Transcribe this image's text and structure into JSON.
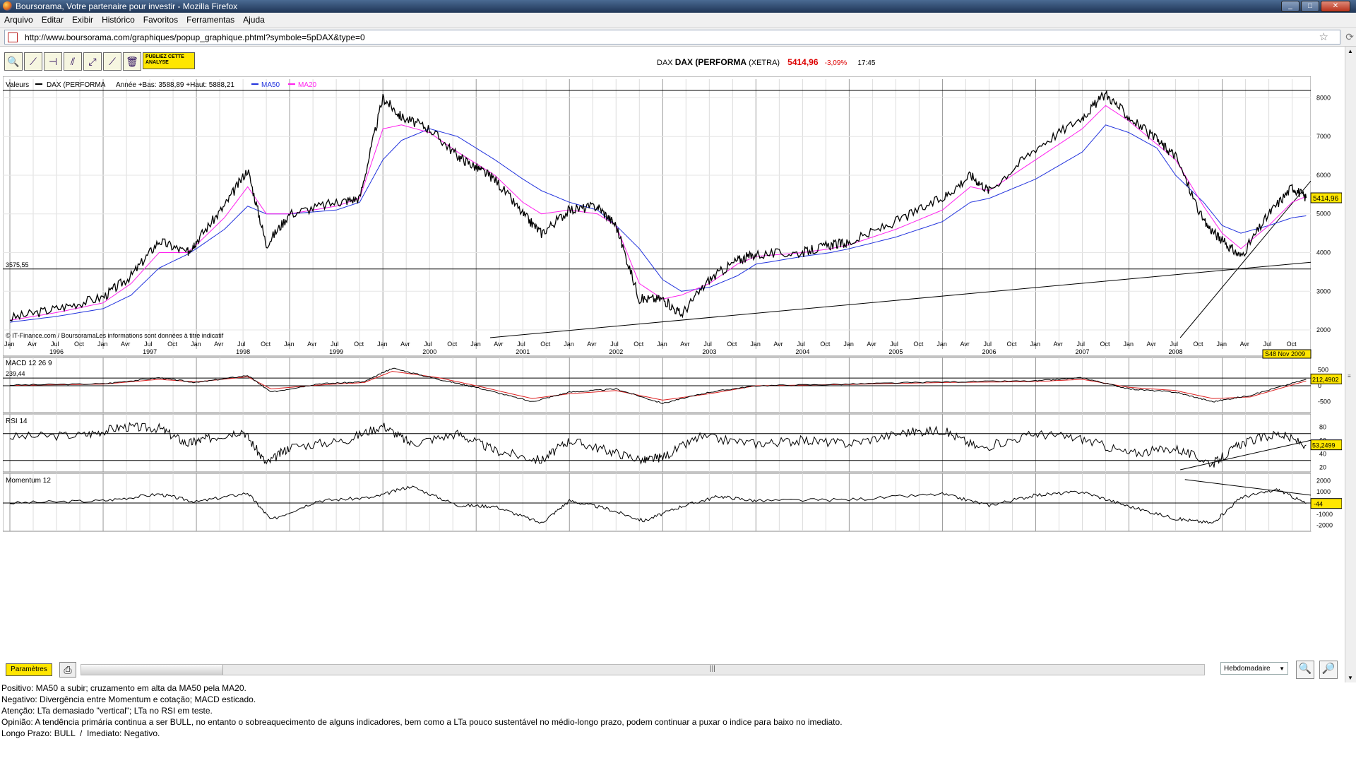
{
  "window": {
    "title": "Boursorama, Votre partenaire pour investir - Mozilla Firefox"
  },
  "menu": [
    "Arquivo",
    "Editar",
    "Exibir",
    "Histórico",
    "Favoritos",
    "Ferramentas",
    "Ajuda"
  ],
  "address": {
    "url": "http://www.boursorama.com/graphiques/popup_graphique.phtml?symbole=5pDAX&type=0"
  },
  "toolbar": {
    "publiez": "PUBLIEZ CETTE ANALYSE"
  },
  "quote": {
    "code": "DAX",
    "name": "DAX (PERFORMA",
    "market": "(XETRA)",
    "price": "5414,96",
    "change": "-3,09%",
    "time": "17:45"
  },
  "legend": {
    "valeurs": "Valeurs",
    "series": "DAX (PERFORMA",
    "stats": "Année +Bas: 3588,89 +Haut: 5888,21",
    "ma50": "MA50",
    "ma20": "MA20"
  },
  "copyright": "© IT-Finance.com / BoursoramaLes informations sont données à titre indicatif",
  "annotation": {
    "support_level": "3575,55",
    "last_price_tag": "5414,96",
    "date_tag": "S48 Nov 2009"
  },
  "colors": {
    "price": "#000000",
    "ma50": "#2233dd",
    "ma20": "#ff22ee",
    "signal": "#dd2222",
    "tag": "#ffe600"
  },
  "chart_data": [
    {
      "type": "line",
      "title": "DAX (PERFORMA",
      "years": [
        "1996",
        "1997",
        "1998",
        "1999",
        "2000",
        "2001",
        "2002",
        "2003",
        "2004",
        "2005",
        "2006",
        "2007",
        "2008"
      ],
      "month_ticks": [
        "Jan",
        "Avr",
        "Jul",
        "Oct"
      ],
      "y_ticks": [
        8000,
        7000,
        6000,
        5000,
        4000,
        3000,
        2000
      ],
      "ylim": [
        1800,
        8300
      ],
      "x": [
        1996.0,
        1996.5,
        1997.0,
        1997.3,
        1997.6,
        1997.9,
        1998.0,
        1998.3,
        1998.55,
        1998.75,
        1999.0,
        1999.5,
        1999.75,
        2000.0,
        2000.2,
        2000.5,
        2000.8,
        2001.0,
        2001.2,
        2001.5,
        2001.7,
        2002.0,
        2002.3,
        2002.5,
        2002.75,
        2003.0,
        2003.2,
        2003.5,
        2003.8,
        2004.0,
        2004.5,
        2004.8,
        2005.0,
        2005.5,
        2006.0,
        2006.3,
        2006.5,
        2007.0,
        2007.5,
        2007.75,
        2008.0,
        2008.3,
        2008.5,
        2008.8,
        2009.0,
        2009.2,
        2009.5,
        2009.75,
        2009.9
      ],
      "series": [
        {
          "name": "DAX (PERFORMA",
          "values": [
            2300,
            2550,
            2850,
            3400,
            4300,
            4000,
            4300,
            5200,
            6150,
            4200,
            5000,
            5300,
            5400,
            8000,
            7500,
            7200,
            6500,
            6200,
            5900,
            5000,
            4500,
            5100,
            5200,
            4700,
            2800,
            2800,
            2400,
            3300,
            3800,
            3950,
            4000,
            4200,
            4250,
            4800,
            5400,
            6000,
            5600,
            6700,
            7500,
            8100,
            7500,
            6900,
            6500,
            4800,
            4300,
            3900,
            5000,
            5700,
            5414
          ]
        },
        {
          "name": "MA50",
          "values": [
            2200,
            2350,
            2550,
            2900,
            3600,
            3950,
            4100,
            4600,
            5200,
            5000,
            5000,
            5100,
            5300,
            6400,
            6900,
            7200,
            7000,
            6700,
            6400,
            5900,
            5600,
            5300,
            5100,
            4700,
            4100,
            3300,
            3000,
            3100,
            3400,
            3700,
            3900,
            4000,
            4100,
            4400,
            4800,
            5300,
            5400,
            5900,
            6600,
            7300,
            7100,
            6700,
            6000,
            5300,
            4700,
            4500,
            4700,
            4900,
            4950
          ]
        },
        {
          "name": "MA20",
          "values": [
            2250,
            2450,
            2700,
            3200,
            4000,
            4000,
            4200,
            4900,
            5700,
            5000,
            5000,
            5200,
            5400,
            7200,
            7300,
            7100,
            6600,
            6300,
            6000,
            5300,
            5000,
            5100,
            5000,
            4700,
            3200,
            2800,
            2900,
            3200,
            3700,
            3900,
            4000,
            4100,
            4200,
            4600,
            5100,
            5700,
            5600,
            6400,
            7200,
            7800,
            7400,
            6800,
            6400,
            5200,
            4500,
            4100,
            4700,
            5300,
            5450
          ]
        }
      ]
    },
    {
      "type": "line",
      "title": "MACD 12 26 9",
      "y_ticks": [
        500,
        0,
        -500
      ],
      "labels": {
        "level": "239,44",
        "last": "212,4902"
      },
      "ylim": [
        -750,
        750
      ],
      "x": [
        1996.0,
        1997.0,
        1997.6,
        1998.0,
        1998.55,
        1998.8,
        1999.3,
        1999.8,
        2000.1,
        2000.6,
        2001.0,
        2001.6,
        2002.0,
        2002.5,
        2003.0,
        2003.5,
        2004.0,
        2005.0,
        2006.0,
        2007.0,
        2007.5,
        2008.0,
        2008.5,
        2008.9,
        2009.3,
        2009.9
      ],
      "series": [
        {
          "name": "MACD",
          "values": [
            20,
            60,
            250,
            100,
            320,
            -200,
            60,
            120,
            550,
            200,
            -50,
            -500,
            -200,
            -100,
            -550,
            -200,
            0,
            50,
            120,
            150,
            250,
            -100,
            -200,
            -500,
            -300,
            200
          ]
        },
        {
          "name": "Signal",
          "values": [
            10,
            50,
            200,
            120,
            280,
            -100,
            20,
            100,
            450,
            250,
            0,
            -400,
            -250,
            -150,
            -450,
            -250,
            0,
            40,
            100,
            130,
            200,
            -50,
            -150,
            -400,
            -350,
            150
          ]
        }
      ]
    },
    {
      "type": "line",
      "title": "RSI 14",
      "y_ticks": [
        80,
        60,
        40,
        20
      ],
      "labels": {
        "last": "53,2499"
      },
      "ylim": [
        15,
        95
      ],
      "x": [
        1996.0,
        1996.8,
        1997.2,
        1997.6,
        1997.9,
        1998.1,
        1998.5,
        1998.75,
        1999.0,
        1999.6,
        2000.0,
        2000.3,
        2000.8,
        2001.2,
        2001.7,
        2002.0,
        2002.4,
        2002.8,
        2003.0,
        2003.4,
        2004.0,
        2004.5,
        2005.0,
        2005.6,
        2006.0,
        2006.4,
        2007.0,
        2007.5,
        2008.0,
        2008.5,
        2008.9,
        2009.2,
        2009.6,
        2009.9
      ],
      "series": [
        {
          "name": "RSI 14",
          "values": [
            65,
            68,
            80,
            78,
            55,
            62,
            75,
            25,
            50,
            60,
            82,
            55,
            70,
            45,
            30,
            60,
            45,
            30,
            35,
            65,
            55,
            60,
            55,
            72,
            75,
            48,
            70,
            62,
            40,
            48,
            25,
            55,
            70,
            53
          ]
        }
      ]
    },
    {
      "type": "line",
      "title": "Momentum 12",
      "y_ticks": [
        2000,
        1000,
        0,
        -1000,
        -2000
      ],
      "labels": {
        "last": "-44"
      },
      "ylim": [
        -2400,
        2400
      ],
      "x": [
        1996.0,
        1997.0,
        1997.6,
        1998.0,
        1998.55,
        1998.8,
        1999.3,
        1999.9,
        2000.3,
        2000.8,
        2001.2,
        2001.7,
        2002.0,
        2002.4,
        2002.8,
        2003.2,
        2003.6,
        2004.0,
        2005.0,
        2006.0,
        2006.5,
        2007.0,
        2007.5,
        2008.0,
        2008.5,
        2008.9,
        2009.2,
        2009.6,
        2009.9
      ],
      "series": [
        {
          "name": "Momentum 12",
          "values": [
            0,
            200,
            800,
            100,
            900,
            -1500,
            200,
            500,
            1500,
            -200,
            -300,
            -1800,
            200,
            -500,
            -1600,
            -300,
            600,
            200,
            300,
            800,
            -200,
            700,
            1000,
            -300,
            -1400,
            -1800,
            500,
            1200,
            -44
          ]
        }
      ]
    }
  ],
  "bottom": {
    "params": "Paramètres",
    "period": "Hebdomadaire"
  },
  "notes": [
    "Positivo: MA50 a subir; cruzamento em alta da MA50 pela MA20.",
    "Negativo: Divergência entre Momentum e cotação; MACD esticado.",
    "Atenção: LTa demasiado \"vertical\"; LTa no RSI em teste.",
    "",
    "Opinião: A tendência primária continua a ser BULL, no entanto o sobreaquecimento de alguns indicadores, bem como a LTa pouco sustentável no médio-longo prazo, podem continuar a puxar o indice para baixo no imediato.",
    "Longo Prazo: BULL  /  Imediato: Negativo."
  ]
}
